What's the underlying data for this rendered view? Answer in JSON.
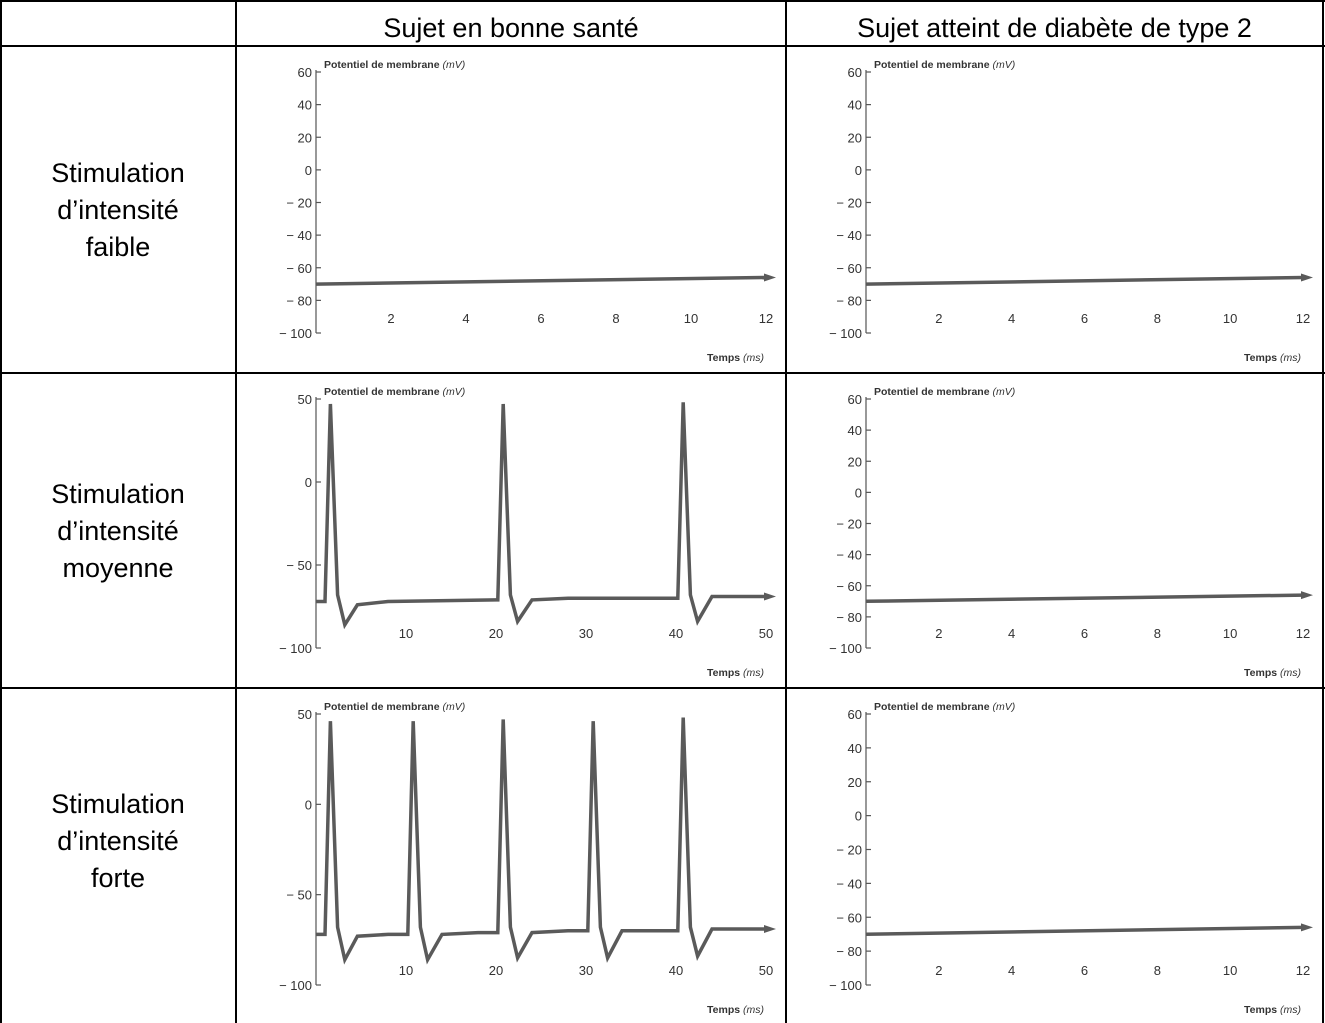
{
  "headers": {
    "healthy": "Sujet en bonne santé",
    "diabetic": "Sujet atteint de diabète de type 2"
  },
  "rows": [
    {
      "line1": "Stimulation",
      "line2": "d’intensité",
      "line3": "faible"
    },
    {
      "line1": "Stimulation",
      "line2": "d’intensité",
      "line3": "moyenne"
    },
    {
      "line1": "Stimulation",
      "line2": "d’intensité",
      "line3": "forte"
    }
  ],
  "chart_data": [
    {
      "id": "faible-sain",
      "type": "line",
      "ylabel": "Potentiel de membrane",
      "yunit": "(mV)",
      "xlabel": "Temps",
      "xunit": "(ms)",
      "yticks": [
        60,
        40,
        20,
        0,
        -20,
        -40,
        -60,
        -80,
        -100
      ],
      "xticks": [
        2,
        4,
        6,
        8,
        10,
        12
      ],
      "ylim": [
        -100,
        60
      ],
      "xlim": [
        0,
        12
      ],
      "series": [
        {
          "x": [
            0,
            12
          ],
          "y": [
            -70,
            -66
          ]
        }
      ]
    },
    {
      "id": "faible-diabete",
      "type": "line",
      "ylabel": "Potentiel de membrane",
      "yunit": "(mV)",
      "xlabel": "Temps",
      "xunit": "(ms)",
      "yticks": [
        60,
        40,
        20,
        0,
        -20,
        -40,
        -60,
        -80,
        -100
      ],
      "xticks": [
        2,
        4,
        6,
        8,
        10,
        12
      ],
      "ylim": [
        -100,
        60
      ],
      "xlim": [
        0,
        12
      ],
      "series": [
        {
          "x": [
            0,
            12
          ],
          "y": [
            -70,
            -66
          ]
        }
      ]
    },
    {
      "id": "moyenne-sain",
      "type": "line",
      "ylabel": "Potentiel de membrane",
      "yunit": "(mV)",
      "xlabel": "Temps",
      "xunit": "(ms)",
      "yticks": [
        50,
        0,
        -50,
        -100
      ],
      "xticks": [
        10,
        20,
        30,
        40,
        50
      ],
      "ylim": [
        -100,
        50
      ],
      "xlim": [
        0,
        50
      ],
      "series": [
        {
          "x": [
            0,
            1.0,
            1.6,
            2.4,
            3.2,
            4.6,
            8,
            20,
            20.2,
            20.8,
            21.6,
            22.4,
            24,
            28,
            40,
            40.2,
            40.8,
            41.6,
            42.4,
            44,
            48,
            50
          ],
          "y": [
            -72,
            -72,
            47,
            -68,
            -86,
            -74,
            -72,
            -71,
            -71,
            47,
            -68,
            -84,
            -71,
            -70,
            -70,
            -70,
            48,
            -68,
            -84,
            -69,
            -69,
            -69
          ]
        }
      ]
    },
    {
      "id": "moyenne-diabete",
      "type": "line",
      "ylabel": "Potentiel de membrane",
      "yunit": "(mV)",
      "xlabel": "Temps",
      "xunit": "(ms)",
      "yticks": [
        60,
        40,
        20,
        0,
        -20,
        -40,
        -60,
        -80,
        -100
      ],
      "xticks": [
        2,
        4,
        6,
        8,
        10,
        12
      ],
      "ylim": [
        -100,
        60
      ],
      "xlim": [
        0,
        12
      ],
      "series": [
        {
          "x": [
            0,
            12
          ],
          "y": [
            -70,
            -66
          ]
        }
      ]
    },
    {
      "id": "forte-sain",
      "type": "line",
      "ylabel": "Potentiel de membrane",
      "yunit": "(mV)",
      "xlabel": "Temps",
      "xunit": "(ms)",
      "yticks": [
        50,
        0,
        -50,
        -100
      ],
      "xticks": [
        10,
        20,
        30,
        40,
        50
      ],
      "ylim": [
        -100,
        50
      ],
      "xlim": [
        0,
        50
      ],
      "series": [
        {
          "x": [
            0,
            1.0,
            1.6,
            2.4,
            3.2,
            4.6,
            8,
            10.2,
            10.8,
            11.6,
            12.4,
            14,
            18,
            20.2,
            20.8,
            21.6,
            22.4,
            24,
            28,
            30.2,
            30.8,
            31.6,
            32.4,
            34,
            38,
            40.2,
            40.8,
            41.6,
            42.4,
            44,
            48,
            50
          ],
          "y": [
            -72,
            -72,
            46,
            -68,
            -86,
            -73,
            -72,
            -72,
            46,
            -68,
            -86,
            -72,
            -71,
            -71,
            47,
            -68,
            -85,
            -71,
            -70,
            -70,
            46,
            -68,
            -85,
            -70,
            -70,
            -70,
            48,
            -68,
            -84,
            -69,
            -69,
            -69
          ]
        }
      ]
    },
    {
      "id": "forte-diabete",
      "type": "line",
      "ylabel": "Potentiel de membrane",
      "yunit": "(mV)",
      "xlabel": "Temps",
      "xunit": "(ms)",
      "yticks": [
        60,
        40,
        20,
        0,
        -20,
        -40,
        -60,
        -80,
        -100
      ],
      "xticks": [
        2,
        4,
        6,
        8,
        10,
        12
      ],
      "ylim": [
        -100,
        60
      ],
      "xlim": [
        0,
        12
      ],
      "series": [
        {
          "x": [
            0,
            12
          ],
          "y": [
            -70,
            -66
          ]
        }
      ]
    }
  ]
}
